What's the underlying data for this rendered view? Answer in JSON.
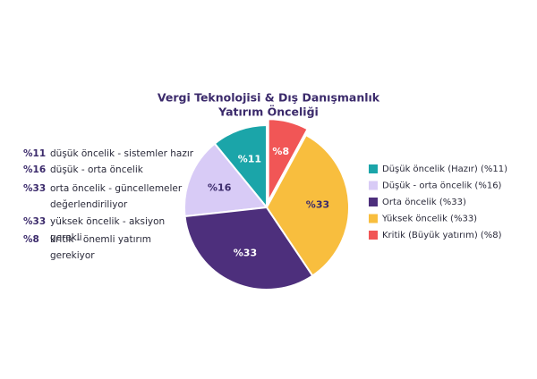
{
  "chart_data": {
    "type": "pie",
    "title": [
      "Vergi Teknolojisi & Dış Danışmanlık",
      "Yatırım Önceliği"
    ],
    "categories": [
      "Düşük öncelik (Hazır) (%11)",
      "Düşük - orta öncelik (%16)",
      "Orta öncelik (%33)",
      "Yüksek öncelik (%33)",
      "Kritik (Büyük yatırım) (%8)"
    ],
    "values": [
      11,
      16,
      33,
      33,
      8
    ],
    "value_labels": [
      "%11",
      "%16",
      "%33",
      "%33",
      "%8"
    ],
    "colors": [
      "#1ba5a9",
      "#d8cbf6",
      "#4d2f7c",
      "#f8be3e",
      "#f15656"
    ],
    "label_colors": [
      "#ffffff",
      "#3b2a6b",
      "#ffffff",
      "#3b2a6b",
      "#ffffff"
    ],
    "notes": [
      "düşük öncelik - sistemler hazır",
      "düşük - orta öncelik",
      "orta öncelik - güncellemeler değerlendiriliyor",
      "yüksek öncelik - aksiyon gerekli",
      "kritik - önemli yatırım gerekiyor"
    ],
    "legend": "right"
  }
}
